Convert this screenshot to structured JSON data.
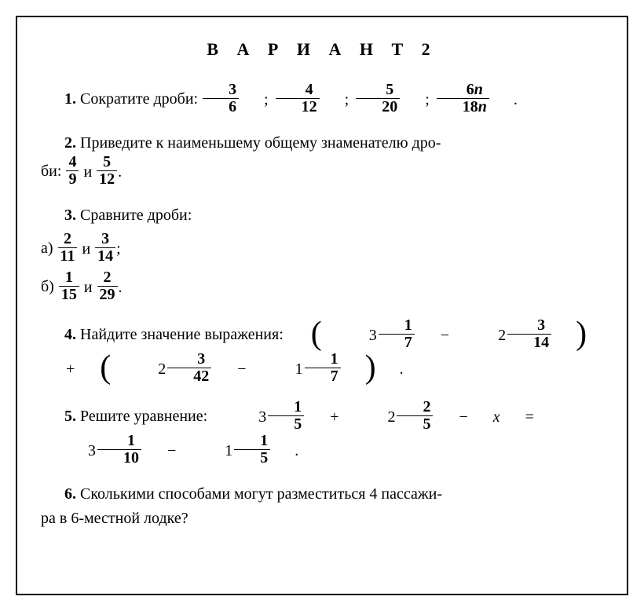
{
  "title": "В А Р И А Н Т  2",
  "p1": {
    "num": "1.",
    "text": "Сократите дроби:",
    "fracs": [
      {
        "n": "3",
        "d": "6"
      },
      {
        "n": "4",
        "d": "12"
      },
      {
        "n": "5",
        "d": "20"
      },
      {
        "n": "6n",
        "d": "18n"
      }
    ],
    "sep": ";",
    "end": "."
  },
  "p2": {
    "num": "2.",
    "text_a": "Приведите к наименьшему общему знаменателю дро-",
    "text_b": "би:",
    "f1": {
      "n": "4",
      "d": "9"
    },
    "conj": "и",
    "f2": {
      "n": "5",
      "d": "12"
    },
    "end": "."
  },
  "p3": {
    "num": "3.",
    "text": "Сравните дроби:",
    "a_label": "а)",
    "a_f1": {
      "n": "2",
      "d": "11"
    },
    "a_conj": "и",
    "a_f2": {
      "n": "3",
      "d": "14"
    },
    "a_end": ";",
    "b_label": "б)",
    "b_f1": {
      "n": "1",
      "d": "15"
    },
    "b_conj": "и",
    "b_f2": {
      "n": "2",
      "d": "29"
    },
    "b_end": "."
  },
  "p4": {
    "num": "4.",
    "text": "Найдите значение выражения:",
    "m1": {
      "w": "3",
      "n": "1",
      "d": "7"
    },
    "m2": {
      "w": "2",
      "n": "3",
      "d": "14"
    },
    "m3": {
      "w": "2",
      "n": "3",
      "d": "42"
    },
    "m4": {
      "w": "1",
      "n": "1",
      "d": "7"
    },
    "end": "."
  },
  "p5": {
    "num": "5.",
    "text": "Решите уравнение:",
    "m1": {
      "w": "3",
      "n": "1",
      "d": "5"
    },
    "m2": {
      "w": "2",
      "n": "2",
      "d": "5"
    },
    "var": "x",
    "m3": {
      "w": "3",
      "n": "1",
      "d": "10"
    },
    "m4": {
      "w": "1",
      "n": "1",
      "d": "5"
    },
    "end": "."
  },
  "p6": {
    "num": "6.",
    "text_a": "Сколькими способами могут разместиться 4 пассажи-",
    "text_b": "ра в 6-местной лодке?"
  }
}
